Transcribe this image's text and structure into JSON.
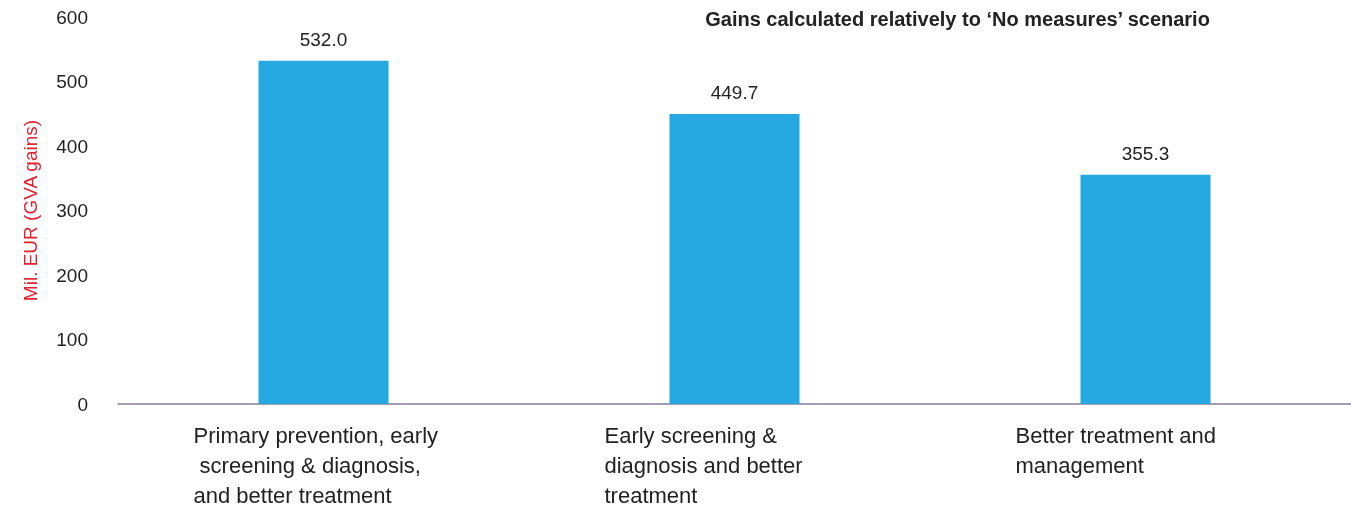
{
  "chart_data": {
    "type": "bar",
    "title": "Gains calculated relatively to ‘No measures’ scenario",
    "ylabel": "Mil. EUR (GVA gains)",
    "categories": [
      "Primary prevention, early screening & diagnosis, and better treatment",
      "Early screening & diagnosis and better treatment",
      "Better treatment and management"
    ],
    "values": [
      532.0,
      449.7,
      355.3
    ],
    "value_labels": [
      "532.0",
      "449.7",
      "355.3"
    ],
    "color": "#25a9e0",
    "ylim": [
      0,
      600
    ],
    "yticks": [
      0,
      100,
      200,
      300,
      400,
      500,
      600
    ],
    "grid": false
  }
}
